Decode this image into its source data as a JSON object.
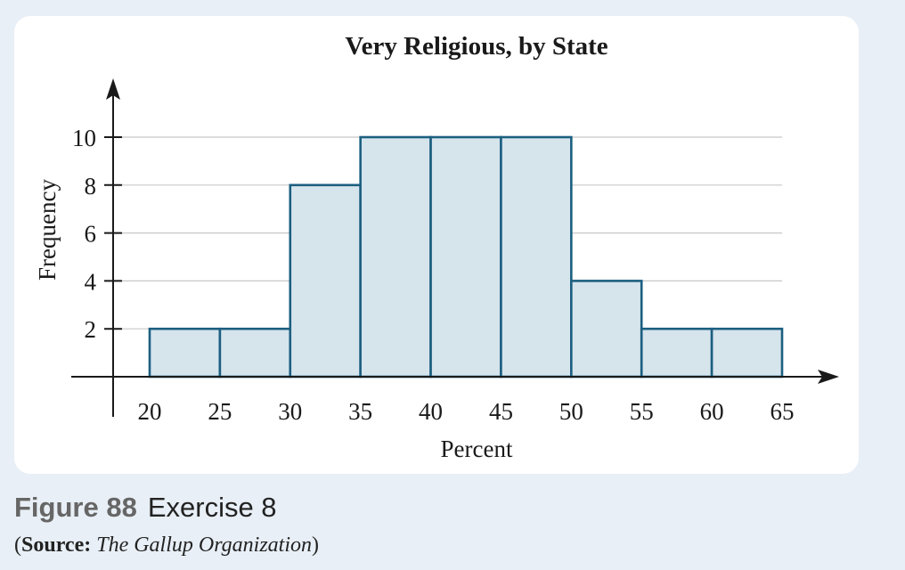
{
  "caption": {
    "figure_number": "Figure 88",
    "figure_text": "Exercise 8"
  },
  "source": {
    "open": "(",
    "label": "Source:",
    "text": "The Gallup Organization",
    "close": ")"
  },
  "colors": {
    "bar_fill": "#d6e4ec",
    "bar_stroke": "#1c5f80",
    "axis": "#1a1a1a",
    "grid": "#c8c8c8",
    "panel": "#ffffff",
    "background": "#e8eff6"
  },
  "chart_data": {
    "type": "bar",
    "title": "Very Religious, by State",
    "xlabel": "Percent",
    "ylabel": "Frequency",
    "bins": [
      {
        "start": 20,
        "end": 25,
        "value": 2
      },
      {
        "start": 25,
        "end": 30,
        "value": 2
      },
      {
        "start": 30,
        "end": 35,
        "value": 8
      },
      {
        "start": 35,
        "end": 40,
        "value": 10
      },
      {
        "start": 40,
        "end": 45,
        "value": 10
      },
      {
        "start": 45,
        "end": 50,
        "value": 10
      },
      {
        "start": 50,
        "end": 55,
        "value": 4
      },
      {
        "start": 55,
        "end": 60,
        "value": 2
      },
      {
        "start": 60,
        "end": 65,
        "value": 2
      }
    ],
    "x_ticks": [
      20,
      25,
      30,
      35,
      40,
      45,
      50,
      55,
      60,
      65
    ],
    "y_ticks": [
      2,
      4,
      6,
      8,
      10
    ],
    "xlim": [
      20,
      65
    ],
    "ylim": [
      0,
      10
    ],
    "grid": true
  }
}
